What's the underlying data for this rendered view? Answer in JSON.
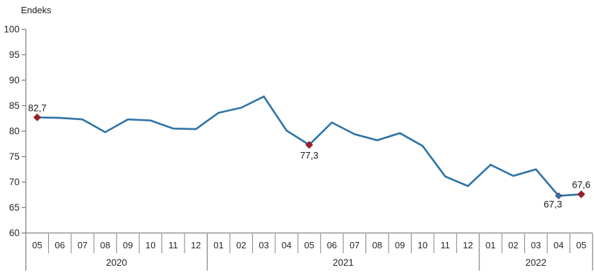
{
  "chart_data": {
    "type": "line",
    "title": "Endeks",
    "ylabel": "Endeks",
    "xlabel": "",
    "ylim": [
      60,
      100
    ],
    "ytick_step": 5,
    "grid": false,
    "legend_position": "none",
    "line_color": "#2E74A6",
    "axis_color": "#808080",
    "text_color": "#262626",
    "marker_colors": {
      "red": "#A61C23",
      "blue": "#2E74B5"
    },
    "groups": [
      {
        "year": "2020",
        "months": [
          "05",
          "06",
          "07",
          "08",
          "09",
          "10",
          "11",
          "12"
        ]
      },
      {
        "year": "2021",
        "months": [
          "01",
          "02",
          "03",
          "04",
          "05",
          "06",
          "07",
          "08",
          "09",
          "10",
          "11",
          "12"
        ]
      },
      {
        "year": "2022",
        "months": [
          "01",
          "02",
          "03",
          "04",
          "05"
        ]
      }
    ],
    "values": [
      82.7,
      82.6,
      82.3,
      79.8,
      82.3,
      82.1,
      80.5,
      80.4,
      83.6,
      84.6,
      86.8,
      80.1,
      77.3,
      81.7,
      79.4,
      78.2,
      79.6,
      77.1,
      71.1,
      69.2,
      73.4,
      71.2,
      72.5,
      67.3,
      67.6
    ],
    "annotations": [
      {
        "index": 0,
        "label": "82,7",
        "marker": "red",
        "placement": "above-right"
      },
      {
        "index": 12,
        "label": "77,3",
        "marker": "red",
        "placement": "below"
      },
      {
        "index": 23,
        "label": "67,3",
        "marker": "blue",
        "placement": "below-left"
      },
      {
        "index": 24,
        "label": "67,6",
        "marker": "red",
        "placement": "above"
      }
    ]
  }
}
